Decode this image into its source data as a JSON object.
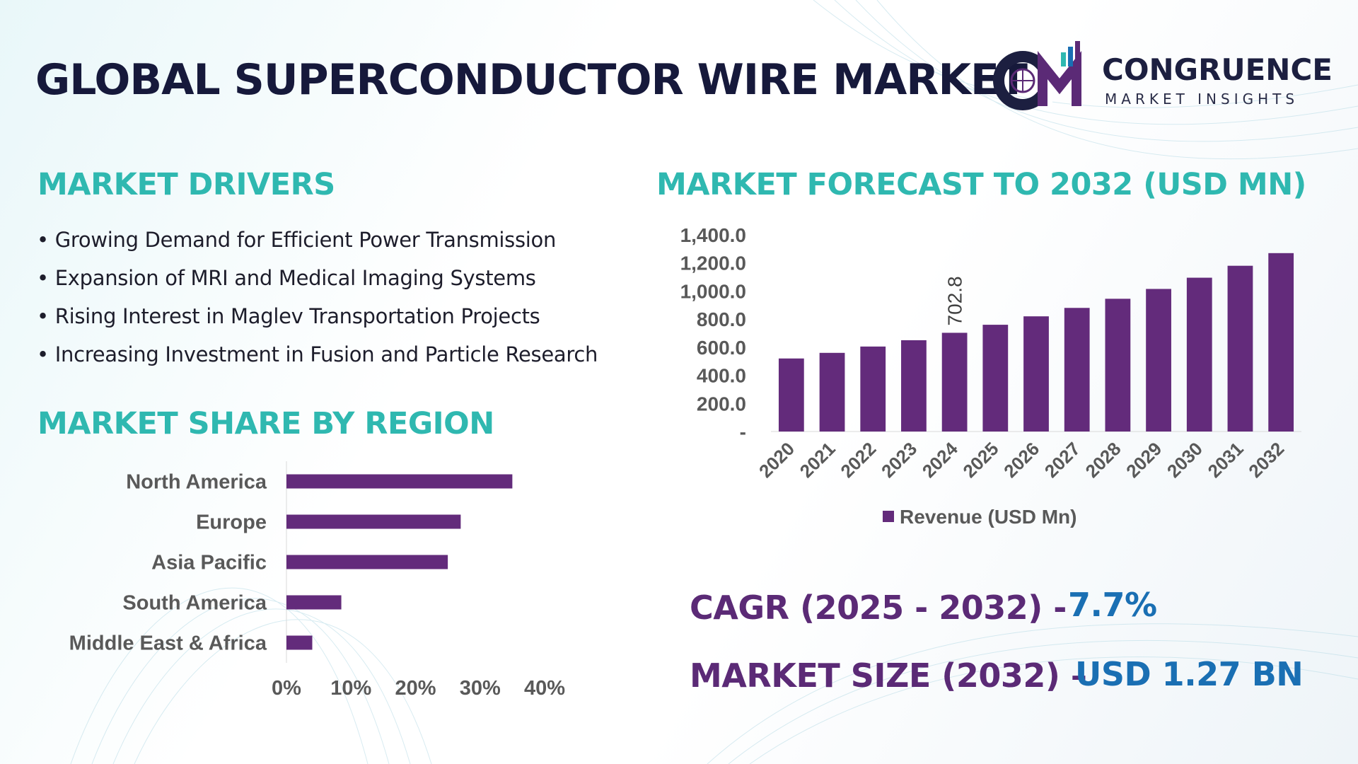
{
  "title": "GLOBAL SUPERCONDUCTOR WIRE MARKET",
  "logo": {
    "name": "CONGRUENCE",
    "tagline": "MARKET INSIGHTS",
    "colors": {
      "navy": "#1c1f40",
      "purple": "#5b2a76"
    }
  },
  "drivers": {
    "heading": "MARKET DRIVERS",
    "items": [
      "Growing Demand for Efficient Power Transmission",
      "Expansion of MRI and Medical Imaging Systems",
      "Rising Interest in Maglev Transportation Projects",
      "Increasing Investment in Fusion and Particle Research"
    ]
  },
  "region_heading": "MARKET SHARE BY REGION",
  "forecast_heading": "MARKET FORECAST TO 2032 (USD MN)",
  "cagr": {
    "label": "CAGR (2025 - 2032) -",
    "value": "7.7%"
  },
  "market_size": {
    "label": "MARKET SIZE (2032) –",
    "value": "USD 1.27 BN"
  },
  "colors": {
    "accent_teal": "#2fb8b0",
    "bar_purple": "#632b7b",
    "label_purple": "#5b2a76",
    "value_blue": "#1a6fb3"
  },
  "chart_data": [
    {
      "type": "bar",
      "title": "MARKET FORECAST TO 2032 (USD MN)",
      "categories": [
        "2020",
        "2021",
        "2022",
        "2023",
        "2024",
        "2025",
        "2026",
        "2027",
        "2028",
        "2029",
        "2030",
        "2031",
        "2032"
      ],
      "series": [
        {
          "name": "Revenue (USD Mn)",
          "values": [
            520,
            560,
            605,
            650,
            702.8,
            760,
            820,
            880,
            945,
            1015,
            1095,
            1180,
            1270
          ]
        }
      ],
      "ylim": [
        0,
        1400
      ],
      "yticks": [
        "-",
        "200.0",
        "400.0",
        "600.0",
        "800.0",
        "1,000.0",
        "1,200.0",
        "1,400.0"
      ],
      "data_labels": {
        "2024": "702.8"
      },
      "legend": "bottom"
    },
    {
      "type": "bar",
      "orientation": "horizontal",
      "title": "MARKET SHARE BY REGION",
      "categories": [
        "North America",
        "Europe",
        "Asia Pacific",
        "South America",
        "Middle East & Africa"
      ],
      "values": [
        35,
        27,
        25,
        8.5,
        4
      ],
      "xlim": [
        0,
        40
      ],
      "xticks": [
        "0%",
        "10%",
        "20%",
        "30%",
        "40%"
      ]
    }
  ]
}
